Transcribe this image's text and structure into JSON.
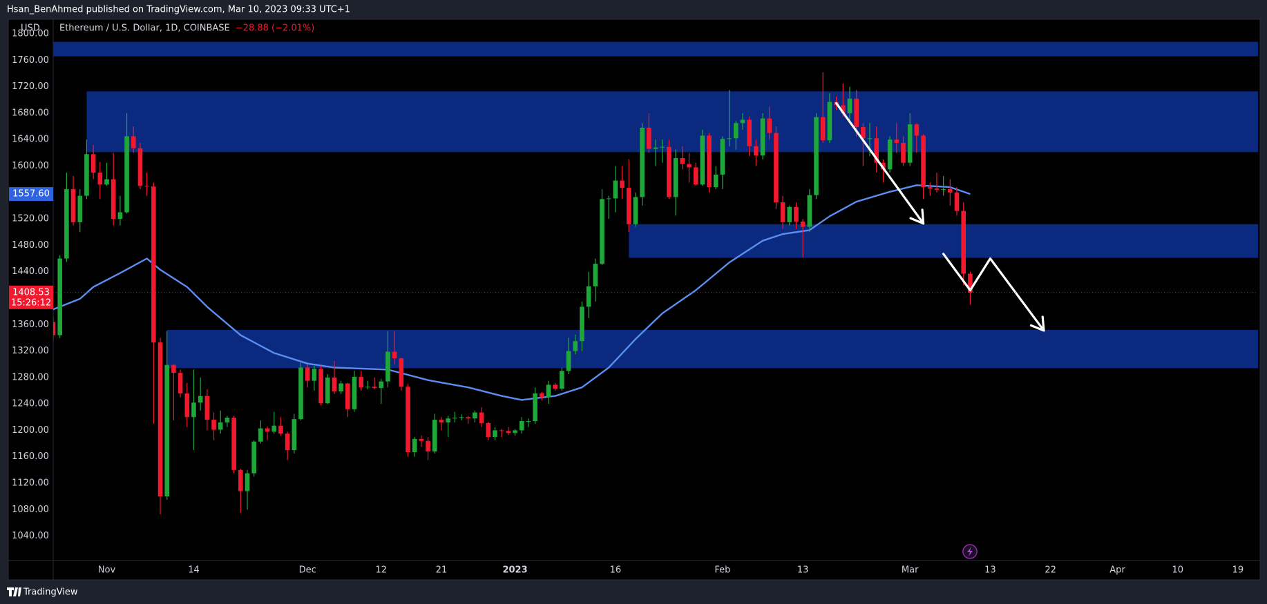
{
  "header": {
    "text": "Hsan_BenAhmed published on TradingView.com, Mar 10, 2023 09:33 UTC+1"
  },
  "footer": {
    "text": "TradingView"
  },
  "chart_data": {
    "type": "candlestick",
    "currency": "USD",
    "title": "Ethereum / U.S. Dollar, 1D, COINBASE",
    "change": "−28.88 (−2.01%)",
    "up_color": "#1fa83a",
    "down_color": "#f2182d",
    "grid": false,
    "xlim": [
      "2022-10-24",
      "2023-04-22"
    ],
    "ylim": [
      1003,
      1822
    ],
    "yticks": [
      {
        "value": 1040,
        "label": "1040.00"
      },
      {
        "value": 1080,
        "label": "1080.00"
      },
      {
        "value": 1120,
        "label": "1120.00"
      },
      {
        "value": 1160,
        "label": "1160.00"
      },
      {
        "value": 1200,
        "label": "1200.00"
      },
      {
        "value": 1240,
        "label": "1240.00"
      },
      {
        "value": 1280,
        "label": "1280.00"
      },
      {
        "value": 1320,
        "label": "1320.00"
      },
      {
        "value": 1360,
        "label": "1360.00"
      },
      {
        "value": 1400,
        "label": "1400.00"
      },
      {
        "value": 1440,
        "label": "1440.00"
      },
      {
        "value": 1480,
        "label": "1480.00"
      },
      {
        "value": 1520,
        "label": "1520.00"
      },
      {
        "value": 1560,
        "label": "1560.00"
      },
      {
        "value": 1600,
        "label": "1600.00"
      },
      {
        "value": 1640,
        "label": "1640.00"
      },
      {
        "value": 1680,
        "label": "1680.00"
      },
      {
        "value": 1720,
        "label": "1720.00"
      },
      {
        "value": 1760,
        "label": "1760.00"
      },
      {
        "value": 1800,
        "label": "1800.00"
      }
    ],
    "xticks": [
      {
        "value": "2022-11-01",
        "label": "Nov"
      },
      {
        "value": "2022-11-14",
        "label": "14"
      },
      {
        "value": "2022-12-01",
        "label": "Dec"
      },
      {
        "value": "2022-12-12",
        "label": "12"
      },
      {
        "value": "2022-12-21",
        "label": "21"
      },
      {
        "value": "2023-01-01",
        "label": "2023"
      },
      {
        "value": "2023-01-16",
        "label": "16"
      },
      {
        "value": "2023-02-01",
        "label": "Feb"
      },
      {
        "value": "2023-02-13",
        "label": "13"
      },
      {
        "value": "2023-03-01",
        "label": "Mar"
      },
      {
        "value": "2023-03-13",
        "label": "13"
      },
      {
        "value": "2023-03-22",
        "label": "22"
      },
      {
        "value": "2023-04-01",
        "label": "Apr"
      },
      {
        "value": "2023-04-10",
        "label": "10"
      },
      {
        "value": "2023-04-19",
        "label": "19"
      }
    ],
    "x": [
      "2022-10-24",
      "2022-10-25",
      "2022-10-26",
      "2022-10-27",
      "2022-10-28",
      "2022-10-29",
      "2022-10-30",
      "2022-10-31",
      "2022-11-01",
      "2022-11-02",
      "2022-11-03",
      "2022-11-04",
      "2022-11-05",
      "2022-11-06",
      "2022-11-07",
      "2022-11-08",
      "2022-11-09",
      "2022-11-10",
      "2022-11-11",
      "2022-11-12",
      "2022-11-13",
      "2022-11-14",
      "2022-11-15",
      "2022-11-16",
      "2022-11-17",
      "2022-11-18",
      "2022-11-19",
      "2022-11-20",
      "2022-11-21",
      "2022-11-22",
      "2022-11-23",
      "2022-11-24",
      "2022-11-25",
      "2022-11-26",
      "2022-11-27",
      "2022-11-28",
      "2022-11-29",
      "2022-11-30",
      "2022-12-01",
      "2022-12-02",
      "2022-12-03",
      "2022-12-04",
      "2022-12-05",
      "2022-12-06",
      "2022-12-07",
      "2022-12-08",
      "2022-12-09",
      "2022-12-10",
      "2022-12-11",
      "2022-12-12",
      "2022-12-13",
      "2022-12-14",
      "2022-12-15",
      "2022-12-16",
      "2022-12-17",
      "2022-12-18",
      "2022-12-19",
      "2022-12-20",
      "2022-12-21",
      "2022-12-22",
      "2022-12-23",
      "2022-12-24",
      "2022-12-25",
      "2022-12-26",
      "2022-12-27",
      "2022-12-28",
      "2022-12-29",
      "2022-12-30",
      "2022-12-31",
      "2023-01-01",
      "2023-01-02",
      "2023-01-03",
      "2023-01-04",
      "2023-01-05",
      "2023-01-06",
      "2023-01-07",
      "2023-01-08",
      "2023-01-09",
      "2023-01-10",
      "2023-01-11",
      "2023-01-12",
      "2023-01-13",
      "2023-01-14",
      "2023-01-15",
      "2023-01-16",
      "2023-01-17",
      "2023-01-18",
      "2023-01-19",
      "2023-01-20",
      "2023-01-21",
      "2023-01-22",
      "2023-01-23",
      "2023-01-24",
      "2023-01-25",
      "2023-01-26",
      "2023-01-27",
      "2023-01-28",
      "2023-01-29",
      "2023-01-30",
      "2023-01-31",
      "2023-02-01",
      "2023-02-02",
      "2023-02-03",
      "2023-02-04",
      "2023-02-05",
      "2023-02-06",
      "2023-02-07",
      "2023-02-08",
      "2023-02-09",
      "2023-02-10",
      "2023-02-11",
      "2023-02-12",
      "2023-02-13",
      "2023-02-14",
      "2023-02-15",
      "2023-02-16",
      "2023-02-17",
      "2023-02-18",
      "2023-02-19",
      "2023-02-20",
      "2023-02-21",
      "2023-02-22",
      "2023-02-23",
      "2023-02-24",
      "2023-02-25",
      "2023-02-26",
      "2023-02-27",
      "2023-02-28",
      "2023-03-01",
      "2023-03-02",
      "2023-03-03",
      "2023-03-04",
      "2023-03-05",
      "2023-03-06",
      "2023-03-07",
      "2023-03-08",
      "2023-03-09",
      "2023-03-10"
    ],
    "open": [
      1364,
      1344,
      1460,
      1565,
      1515,
      1555,
      1618,
      1590,
      1572,
      1580,
      1520,
      1530,
      1645,
      1627,
      1570,
      1569,
      1333,
      1100,
      1299,
      1287,
      1256,
      1220,
      1242,
      1252,
      1216,
      1201,
      1212,
      1219,
      1140,
      1108,
      1135,
      1183,
      1203,
      1198,
      1207,
      1195,
      1170,
      1217,
      1295,
      1275,
      1293,
      1241,
      1280,
      1259,
      1271,
      1232,
      1281,
      1265,
      1266,
      1264,
      1274,
      1319,
      1309,
      1266,
      1167,
      1187,
      1184,
      1168,
      1216,
      1212,
      1218,
      1219,
      1220,
      1218,
      1227,
      1211,
      1190,
      1200,
      1199,
      1196,
      1200,
      1214,
      1214,
      1256,
      1250,
      1269,
      1263,
      1290,
      1320,
      1335,
      1387,
      1418,
      1452,
      1550,
      1551,
      1578,
      1567,
      1512,
      1553,
      1658,
      1626,
      1628,
      1629,
      1553,
      1612,
      1603,
      1598,
      1572,
      1646,
      1568,
      1587,
      1641,
      1642,
      1665,
      1670,
      1630,
      1616,
      1672,
      1650,
      1545,
      1515,
      1538,
      1516,
      1508,
      1556,
      1674,
      1639,
      1697,
      1692,
      1680,
      1702,
      1659,
      1642,
      1642,
      1605,
      1595,
      1640,
      1635,
      1605,
      1663,
      1646,
      1568,
      1566,
      1564,
      1565,
      1560,
      1532,
      1437
    ],
    "high": [
      1372,
      1465,
      1590,
      1585,
      1565,
      1640,
      1632,
      1606,
      1605,
      1620,
      1555,
      1680,
      1660,
      1635,
      1590,
      1575,
      1340,
      1350,
      1300,
      1292,
      1272,
      1292,
      1280,
      1262,
      1227,
      1230,
      1222,
      1222,
      1142,
      1140,
      1185,
      1215,
      1206,
      1228,
      1220,
      1198,
      1225,
      1305,
      1300,
      1298,
      1298,
      1285,
      1305,
      1275,
      1272,
      1290,
      1290,
      1275,
      1280,
      1278,
      1350,
      1350,
      1310,
      1270,
      1190,
      1192,
      1190,
      1225,
      1220,
      1222,
      1228,
      1224,
      1222,
      1230,
      1235,
      1213,
      1205,
      1202,
      1205,
      1202,
      1220,
      1218,
      1265,
      1258,
      1275,
      1272,
      1295,
      1340,
      1345,
      1395,
      1440,
      1460,
      1565,
      1555,
      1600,
      1600,
      1610,
      1560,
      1665,
      1680,
      1640,
      1640,
      1640,
      1625,
      1630,
      1620,
      1605,
      1655,
      1650,
      1600,
      1645,
      1715,
      1668,
      1680,
      1675,
      1640,
      1680,
      1690,
      1660,
      1555,
      1540,
      1545,
      1520,
      1565,
      1680,
      1742,
      1710,
      1705,
      1725,
      1720,
      1715,
      1665,
      1665,
      1660,
      1610,
      1645,
      1665,
      1645,
      1680,
      1665,
      1648,
      1575,
      1590,
      1585,
      1580,
      1568,
      1545,
      1440
    ],
    "low": [
      1336,
      1340,
      1455,
      1510,
      1500,
      1550,
      1580,
      1550,
      1570,
      1510,
      1510,
      1528,
      1620,
      1565,
      1555,
      1210,
      1073,
      1095,
      1215,
      1250,
      1205,
      1170,
      1230,
      1200,
      1185,
      1195,
      1205,
      1135,
      1075,
      1080,
      1130,
      1180,
      1185,
      1195,
      1192,
      1155,
      1165,
      1215,
      1265,
      1260,
      1238,
      1240,
      1255,
      1255,
      1220,
      1228,
      1260,
      1262,
      1262,
      1240,
      1265,
      1300,
      1260,
      1160,
      1160,
      1175,
      1155,
      1165,
      1200,
      1190,
      1212,
      1215,
      1210,
      1212,
      1205,
      1185,
      1185,
      1190,
      1193,
      1192,
      1195,
      1205,
      1210,
      1245,
      1240,
      1260,
      1260,
      1285,
      1315,
      1320,
      1370,
      1395,
      1450,
      1520,
      1530,
      1550,
      1500,
      1508,
      1540,
      1620,
      1600,
      1605,
      1550,
      1525,
      1595,
      1575,
      1570,
      1570,
      1560,
      1565,
      1565,
      1630,
      1625,
      1655,
      1615,
      1600,
      1610,
      1640,
      1535,
      1505,
      1510,
      1505,
      1462,
      1500,
      1550,
      1635,
      1635,
      1685,
      1675,
      1670,
      1645,
      1600,
      1615,
      1590,
      1575,
      1590,
      1620,
      1600,
      1600,
      1620,
      1550,
      1555,
      1560,
      1555,
      1540,
      1525,
      1420,
      1390
    ],
    "close": [
      1344,
      1460,
      1565,
      1515,
      1555,
      1618,
      1590,
      1572,
      1580,
      1520,
      1530,
      1645,
      1627,
      1570,
      1569,
      1333,
      1100,
      1299,
      1287,
      1256,
      1220,
      1242,
      1252,
      1216,
      1201,
      1212,
      1219,
      1140,
      1108,
      1135,
      1183,
      1203,
      1198,
      1207,
      1195,
      1170,
      1217,
      1295,
      1275,
      1293,
      1241,
      1280,
      1259,
      1271,
      1232,
      1281,
      1265,
      1266,
      1264,
      1274,
      1319,
      1309,
      1266,
      1167,
      1187,
      1184,
      1168,
      1216,
      1212,
      1218,
      1219,
      1220,
      1218,
      1227,
      1211,
      1190,
      1200,
      1199,
      1196,
      1200,
      1214,
      1214,
      1256,
      1250,
      1269,
      1263,
      1290,
      1320,
      1335,
      1387,
      1418,
      1452,
      1550,
      1551,
      1578,
      1567,
      1512,
      1553,
      1658,
      1626,
      1628,
      1629,
      1553,
      1612,
      1603,
      1598,
      1572,
      1646,
      1568,
      1587,
      1641,
      1642,
      1665,
      1670,
      1630,
      1616,
      1672,
      1650,
      1545,
      1515,
      1538,
      1516,
      1508,
      1556,
      1674,
      1639,
      1697,
      1692,
      1680,
      1702,
      1659,
      1642,
      1642,
      1605,
      1595,
      1640,
      1635,
      1605,
      1663,
      1646,
      1568,
      1566,
      1564,
      1565,
      1560,
      1532,
      1437,
      1408.53
    ],
    "ma": {
      "color": "#5b8ef0",
      "x": [
        "2022-10-24",
        "2022-10-28",
        "2022-10-30",
        "2022-11-03",
        "2022-11-07",
        "2022-11-09",
        "2022-11-13",
        "2022-11-16",
        "2022-11-21",
        "2022-11-26",
        "2022-12-01",
        "2022-12-05",
        "2022-12-13",
        "2022-12-19",
        "2022-12-25",
        "2022-12-30",
        "2023-01-02",
        "2023-01-07",
        "2023-01-11",
        "2023-01-15",
        "2023-01-19",
        "2023-01-23",
        "2023-01-28",
        "2023-02-02",
        "2023-02-07",
        "2023-02-10",
        "2023-02-14",
        "2023-02-17",
        "2023-02-21",
        "2023-02-26",
        "2023-03-02",
        "2023-03-07",
        "2023-03-10"
      ],
      "values": [
        1383,
        1399,
        1417,
        1438,
        1460,
        1443,
        1417,
        1387,
        1344,
        1317,
        1301,
        1295,
        1292,
        1276,
        1265,
        1252,
        1246,
        1252,
        1265,
        1295,
        1338,
        1377,
        1412,
        1454,
        1487,
        1497,
        1503,
        1524,
        1546,
        1561,
        1571,
        1568,
        1557.6
      ]
    },
    "zones": {
      "color": "#0b2a7f",
      "items": [
        {
          "start": "2022-10-24",
          "top": 1788,
          "bottom": 1766
        },
        {
          "start": "2022-10-29",
          "top": 1713,
          "bottom": 1621
        },
        {
          "start": "2023-01-18",
          "top": 1512,
          "bottom": 1461
        },
        {
          "start": "2022-11-10",
          "top": 1352,
          "bottom": 1294
        }
      ]
    },
    "arrows": [
      {
        "x": [
          "2023-02-18",
          "2023-03-03"
        ],
        "values": [
          1695,
          1513
        ]
      },
      {
        "x": [
          "2023-03-06",
          "2023-03-10",
          "2023-03-13",
          "2023-03-21"
        ],
        "values": [
          1467,
          1412,
          1460,
          1351
        ]
      }
    ],
    "price_labels": [
      {
        "value": 1557.6,
        "label": "1557.60",
        "color": "#2f63e0"
      },
      {
        "value": 1408.53,
        "label": "1408.53",
        "countdown": "15:26:12",
        "color": "#f2182d"
      }
    ]
  }
}
